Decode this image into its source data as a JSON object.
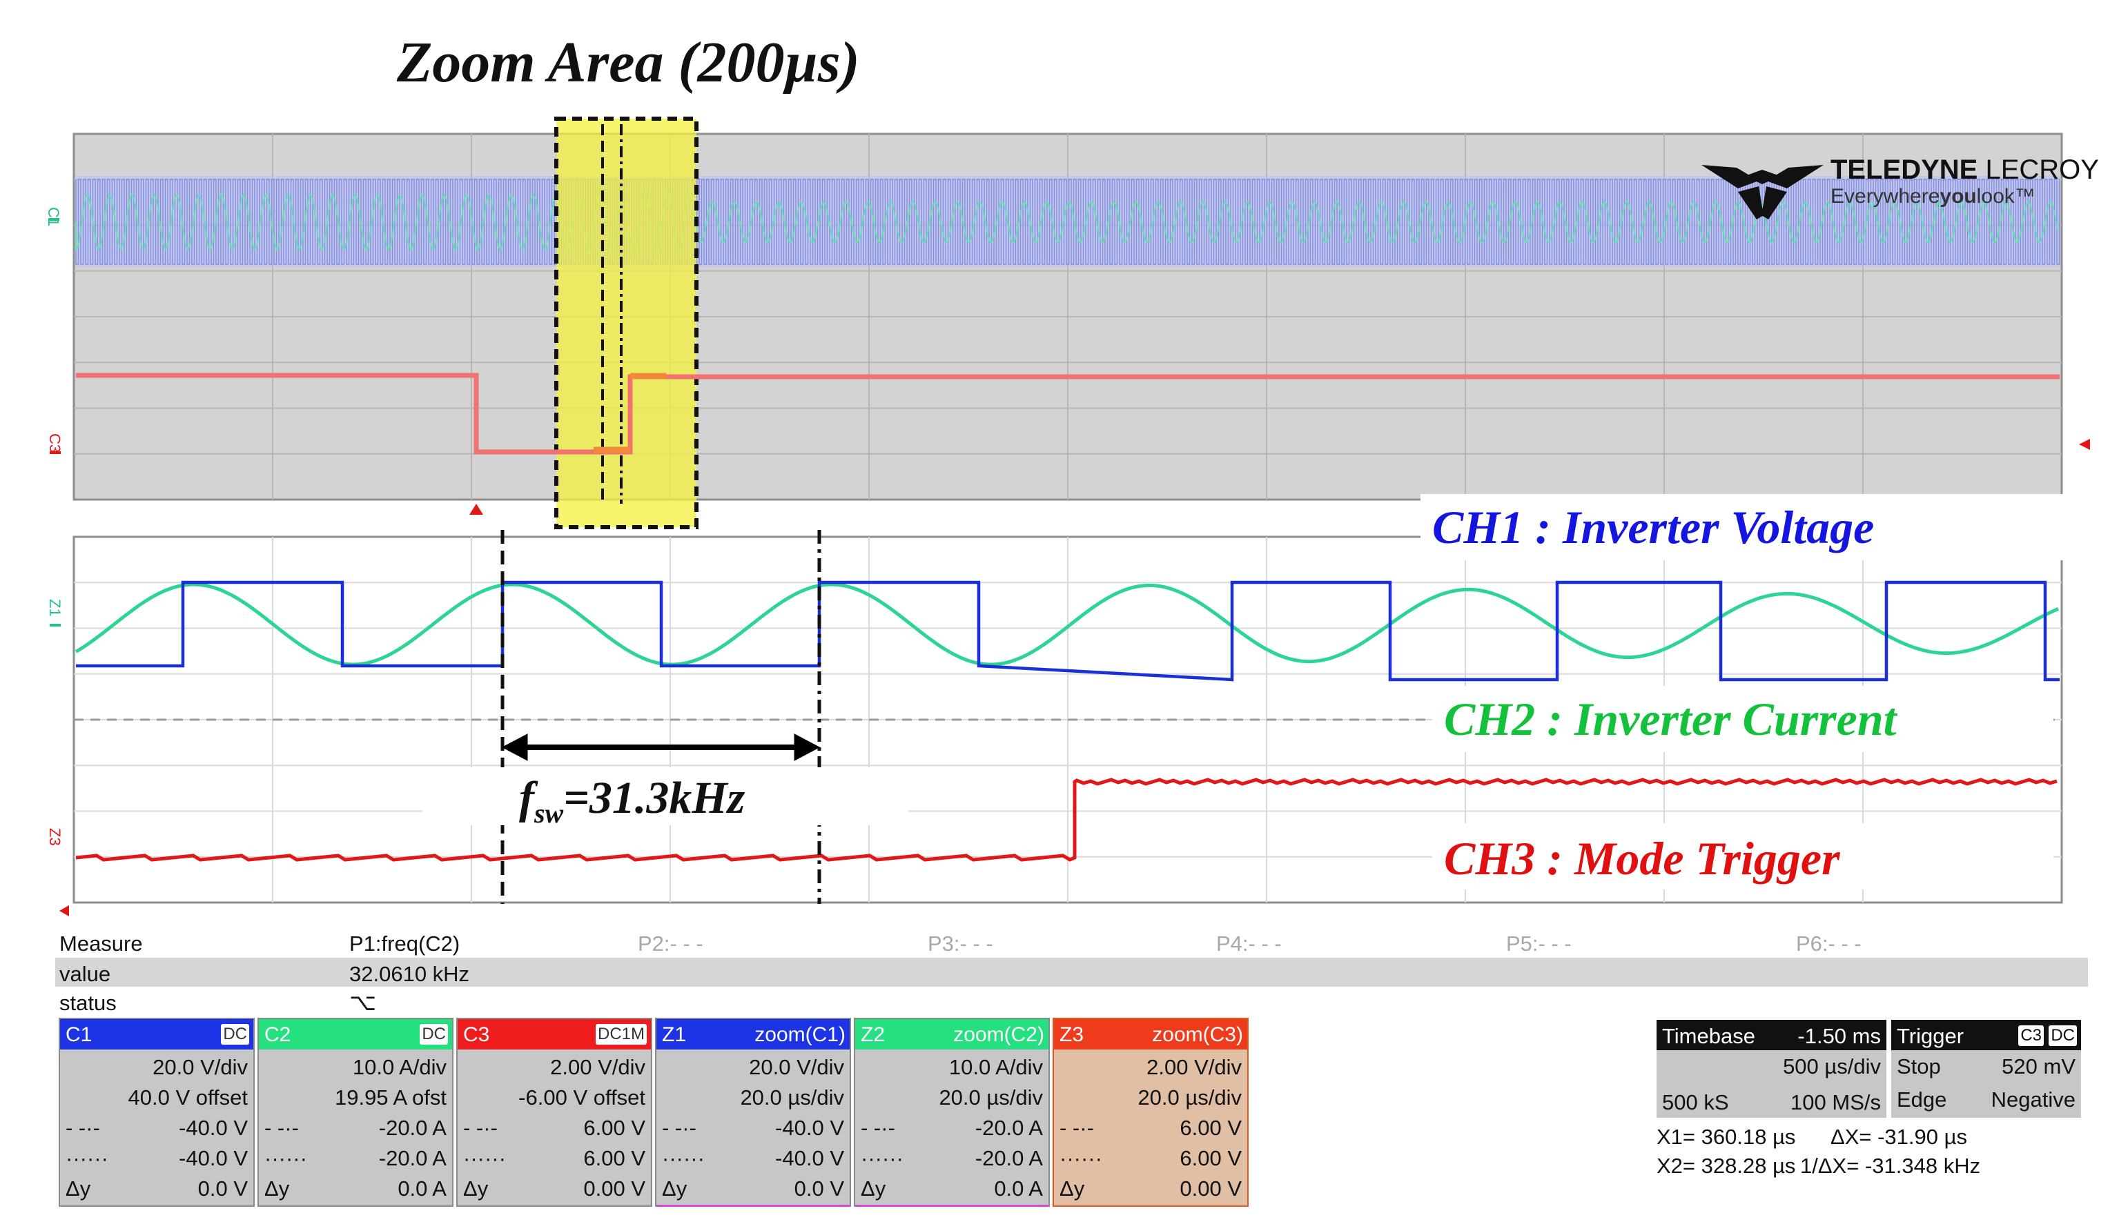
{
  "zoom_area_title": "Zoom Area (200µs)",
  "brand": {
    "name_bold": "TELEDYNE",
    "name_light": " LECROY",
    "tagline_pre": "Everywhere",
    "tagline_bold": "you",
    "tagline_post": "look™"
  },
  "trace_labels": {
    "c1": "C1",
    "c3": "C3",
    "z1": "Z1",
    "z3": "Z3"
  },
  "annotations": {
    "ch1": "CH1 : Inverter Voltage",
    "ch2": "CH2 : Inverter Current",
    "ch3": "CH3 : Mode Trigger",
    "fsw_f": "f",
    "fsw_sub": "sw",
    "fsw_val": "=31.3kHz"
  },
  "colors": {
    "ch1": "#1a2fd8",
    "ch2": "#22d28a",
    "ch3": "#e01818",
    "highlight": "#f4f03c",
    "ann_blue": "#1515e0",
    "ann_green": "#13c23a",
    "ann_red": "#e01010"
  },
  "measure": {
    "row_labels": [
      "Measure",
      "value",
      "status"
    ],
    "params": [
      "P1:freq(C2)",
      "P2:- - -",
      "P3:- - -",
      "P4:- - -",
      "P5:- - -",
      "P6:- - -"
    ],
    "p1_value": "32.0610 kHz",
    "status_icon": "⌥"
  },
  "channels": [
    {
      "name": "C1",
      "coupling": "DC",
      "rows": [
        "20.0 V/div",
        "40.0 V offset"
      ],
      "c1": "-40.0 V",
      "c2": "-40.0 V",
      "dy": "0.0 V",
      "head_color": "#1c33e6",
      "body_color": "#c7c7c7"
    },
    {
      "name": "C2",
      "coupling": "DC",
      "rows": [
        "10.0 A/div",
        "19.95 A ofst"
      ],
      "c1": "-20.0 A",
      "c2": "-20.0 A",
      "dy": "0.0 A",
      "head_color": "#25e07e",
      "body_color": "#c7c7c7"
    },
    {
      "name": "C3",
      "coupling": "DC1M",
      "rows": [
        "2.00 V/div",
        "-6.00 V offset"
      ],
      "c1": "6.00 V",
      "c2": "6.00 V",
      "dy": "0.00 V",
      "head_color": "#ee1c1c",
      "body_color": "#c7c7c7"
    },
    {
      "name": "Z1",
      "coupling": "zoom(C1)",
      "rows": [
        "20.0 V/div",
        "20.0 µs/div"
      ],
      "c1": "-40.0 V",
      "c2": "-40.0 V",
      "dy": "0.0 V",
      "head_color": "#1c33e6",
      "body_color": "#c7c7c7"
    },
    {
      "name": "Z2",
      "coupling": "zoom(C2)",
      "rows": [
        "10.0 A/div",
        "20.0 µs/div"
      ],
      "c1": "-20.0 A",
      "c2": "-20.0 A",
      "dy": "0.0 A",
      "head_color": "#25e07e",
      "body_color": "#c7c7c7"
    },
    {
      "name": "Z3",
      "coupling": "zoom(C3)",
      "rows": [
        "2.00 V/div",
        "20.0 µs/div"
      ],
      "c1": "6.00 V",
      "c2": "6.00 V",
      "dy": "0.00 V",
      "head_color": "#ee3b1c",
      "body_color": "#e0bfa4"
    }
  ],
  "cursor_symbols": {
    "solid": "- -·-",
    "dotted": "······",
    "dy": "Δy"
  },
  "timebase": {
    "label": "Timebase",
    "value": "-1.50 ms",
    "per_div": "500 µs/div",
    "samples": "500 kS",
    "rate": "100 MS/s"
  },
  "trigger": {
    "label": "Trigger",
    "channel": "C3",
    "coupling": "DC",
    "mode": "Stop",
    "level": "520 mV",
    "type": "Edge",
    "slope": "Negative"
  },
  "cursors": {
    "x1": "X1= 360.18 µs",
    "dx": "ΔX=  -31.90 µs",
    "x2": "X2= 328.28 µs",
    "inv_dx": "1/ΔX= -31.348 kHz"
  }
}
